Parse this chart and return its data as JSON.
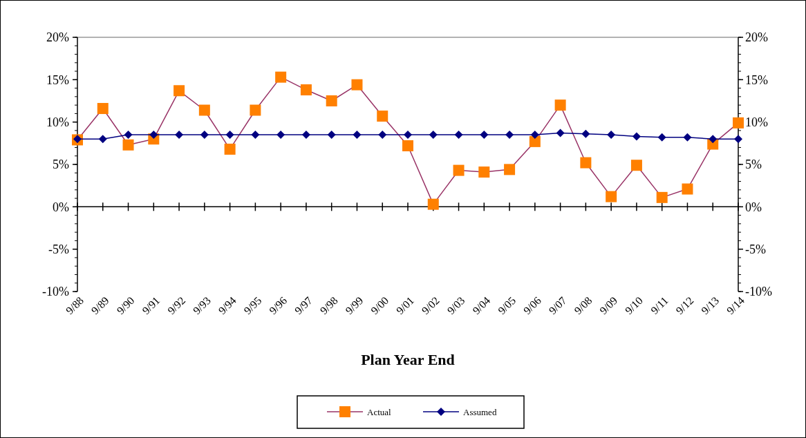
{
  "chart_data": {
    "type": "line",
    "xlabel": "Plan Year End",
    "categories": [
      "9/88",
      "9/89",
      "9/90",
      "9/91",
      "9/92",
      "9/93",
      "9/94",
      "9/95",
      "9/96",
      "9/97",
      "9/98",
      "9/99",
      "9/00",
      "9/01",
      "9/02",
      "9/03",
      "9/04",
      "9/05",
      "9/06",
      "9/07",
      "9/08",
      "9/09",
      "9/10",
      "9/11",
      "9/12",
      "9/13",
      "9/14"
    ],
    "series": [
      {
        "name": "Actual",
        "color": "#ff8000",
        "marker": "square",
        "values": [
          7.9,
          11.6,
          7.3,
          8.0,
          13.7,
          11.4,
          6.8,
          11.4,
          15.3,
          13.8,
          12.5,
          14.4,
          10.7,
          7.2,
          0.3,
          4.3,
          4.1,
          4.4,
          7.7,
          12.0,
          5.2,
          1.2,
          4.9,
          1.1,
          2.1,
          7.4,
          9.9
        ]
      },
      {
        "name": "Assumed",
        "color": "#000080",
        "marker": "diamond",
        "values": [
          8.0,
          8.0,
          8.5,
          8.5,
          8.5,
          8.5,
          8.5,
          8.5,
          8.5,
          8.5,
          8.5,
          8.5,
          8.5,
          8.5,
          8.5,
          8.5,
          8.5,
          8.5,
          8.5,
          8.7,
          8.6,
          8.5,
          8.3,
          8.2,
          8.2,
          8.0,
          8.0
        ]
      }
    ],
    "ylim": [
      -10,
      20
    ],
    "yticks": [
      {
        "value": -10,
        "label": "-10%"
      },
      {
        "value": -5,
        "label": "-5%"
      },
      {
        "value": 0,
        "label": "0%"
      },
      {
        "value": 5,
        "label": "5%"
      },
      {
        "value": 10,
        "label": "10%"
      },
      {
        "value": 15,
        "label": "15%"
      },
      {
        "value": 20,
        "label": "20%"
      }
    ],
    "y2lim": [
      -10,
      20
    ],
    "y2ticks": [
      {
        "value": -10,
        "label": "-10%"
      },
      {
        "value": -5,
        "label": "-5%"
      },
      {
        "value": 0,
        "label": "0%"
      },
      {
        "value": 5,
        "label": "5%"
      },
      {
        "value": 10,
        "label": "10%"
      },
      {
        "value": 15,
        "label": "15%"
      },
      {
        "value": 20,
        "label": "20%"
      }
    ],
    "legend": "bottom",
    "line_style": "solid"
  }
}
